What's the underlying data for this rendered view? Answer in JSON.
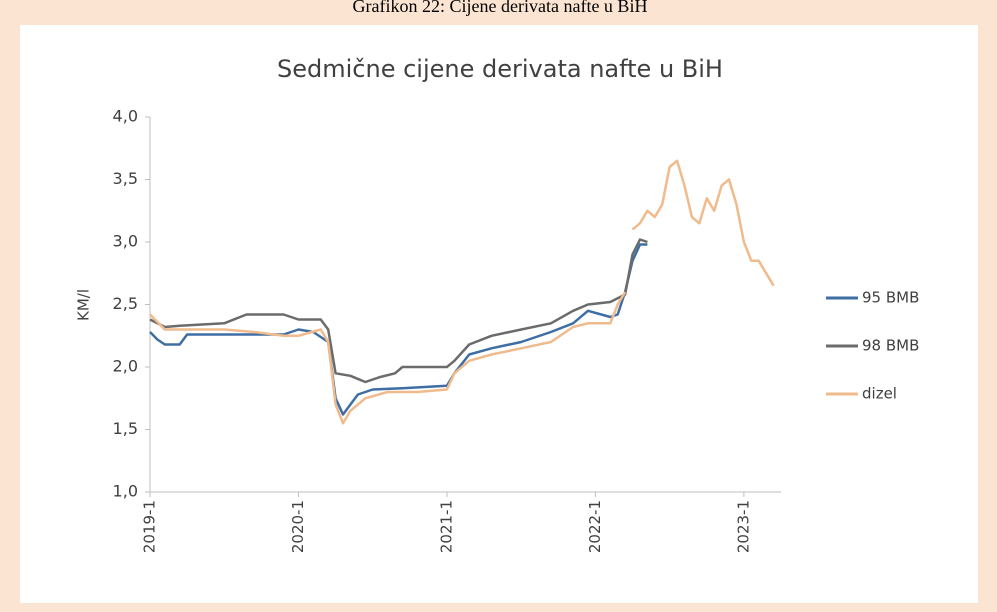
{
  "caption": "Grafikon 22: Cijene derivata nafte u BiH",
  "chart_data": {
    "type": "line",
    "title": "Sedmične cijene derivata nafte u BiH",
    "ylabel": "KM/l",
    "xlim": [
      2019,
      2023.25
    ],
    "xticks": [
      {
        "value": 2019,
        "label": "2019-1"
      },
      {
        "value": 2020,
        "label": "2020-1"
      },
      {
        "value": 2021,
        "label": "2021-1"
      },
      {
        "value": 2022,
        "label": "2022-1"
      },
      {
        "value": 2023,
        "label": "2023-1"
      }
    ],
    "ylim": [
      1,
      4
    ],
    "yticks": [
      {
        "value": 1,
        "label": "1,0"
      },
      {
        "value": 1.5,
        "label": "1,5"
      },
      {
        "value": 2,
        "label": "2,0"
      },
      {
        "value": 2.5,
        "label": "2,5"
      },
      {
        "value": 3,
        "label": "3,0"
      },
      {
        "value": 3.5,
        "label": "3,5"
      },
      {
        "value": 4,
        "label": "4,0"
      }
    ],
    "legend": "right",
    "series": [
      {
        "name": "95 BMB",
        "color": "#3e6ea3",
        "x": [
          2019,
          2019.05,
          2019.1,
          2019.2,
          2019.25,
          2019.5,
          2019.9,
          2020,
          2020.1,
          2020.2,
          2020.25,
          2020.3,
          2020.35,
          2020.4,
          2020.5,
          2020.7,
          2021,
          2021.05,
          2021.15,
          2021.3,
          2021.5,
          2021.7,
          2021.85,
          2021.95,
          2022.1,
          2022.15,
          2022.2,
          2022.25,
          2022.3,
          2022.35
        ],
        "values": [
          2.28,
          2.22,
          2.18,
          2.18,
          2.26,
          2.26,
          2.26,
          2.3,
          2.28,
          2.2,
          1.75,
          1.62,
          1.7,
          1.78,
          1.82,
          1.83,
          1.85,
          1.95,
          2.1,
          2.15,
          2.2,
          2.28,
          2.35,
          2.45,
          2.4,
          2.42,
          2.6,
          2.85,
          2.98,
          2.98
        ]
      },
      {
        "name": "98 BMB",
        "color": "#6b6b6b",
        "x": [
          2019,
          2019.1,
          2019.2,
          2019.5,
          2019.65,
          2019.9,
          2020,
          2020.15,
          2020.2,
          2020.25,
          2020.35,
          2020.45,
          2020.55,
          2020.65,
          2020.7,
          2021,
          2021.05,
          2021.15,
          2021.3,
          2021.5,
          2021.7,
          2021.85,
          2021.95,
          2022.1,
          2022.2,
          2022.25,
          2022.3,
          2022.35
        ],
        "values": [
          2.38,
          2.32,
          2.33,
          2.35,
          2.42,
          2.42,
          2.38,
          2.38,
          2.3,
          1.95,
          1.93,
          1.88,
          1.92,
          1.95,
          2,
          2,
          2.05,
          2.18,
          2.25,
          2.3,
          2.35,
          2.45,
          2.5,
          2.52,
          2.58,
          2.9,
          3.02,
          3
        ]
      },
      {
        "name": "dizel",
        "color": "#f0bb8c",
        "x": [
          2019,
          2019.1,
          2019.2,
          2019.3,
          2019.5,
          2019.7,
          2019.9,
          2020,
          2020.15,
          2020.2,
          2020.25,
          2020.3,
          2020.35,
          2020.45,
          2020.6,
          2020.8,
          2021,
          2021.05,
          2021.15,
          2021.3,
          2021.5,
          2021.7,
          2021.85,
          2021.95,
          2022.1,
          2022.15,
          2022.2,
          2022.22,
          2022.25,
          2022.3,
          2022.35,
          2022.4,
          2022.45,
          2022.5,
          2022.55,
          2022.6,
          2022.65,
          2022.7,
          2022.75,
          2022.8,
          2022.85,
          2022.9,
          2022.95,
          2023,
          2023.05,
          2023.1,
          2023.15,
          2023.2
        ],
        "values": [
          2.42,
          2.3,
          2.3,
          2.3,
          2.3,
          2.28,
          2.25,
          2.25,
          2.3,
          2.2,
          1.7,
          1.55,
          1.65,
          1.75,
          1.8,
          1.8,
          1.82,
          1.95,
          2.05,
          2.1,
          2.15,
          2.2,
          2.32,
          2.35,
          2.35,
          2.5,
          2.6,
          null,
          3.1,
          3.15,
          3.25,
          3.2,
          3.3,
          3.6,
          3.65,
          3.45,
          3.2,
          3.15,
          3.35,
          3.25,
          3.45,
          3.5,
          3.3,
          3,
          2.85,
          2.85,
          2.75,
          2.65
        ]
      }
    ]
  }
}
